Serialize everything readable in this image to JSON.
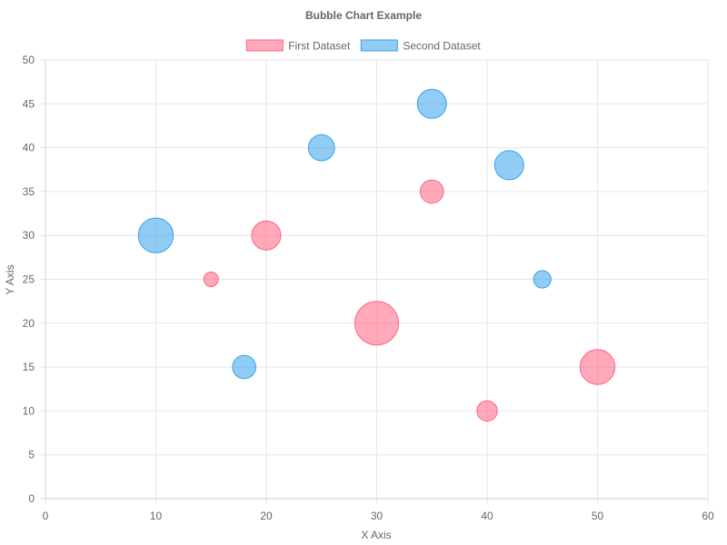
{
  "chart_data": {
    "type": "scatter",
    "subtype": "bubble",
    "title": "Bubble Chart Example",
    "xlabel": "X Axis",
    "ylabel": "Y Axis",
    "xlim": [
      0,
      60
    ],
    "ylim": [
      0,
      50
    ],
    "x_ticks": [
      "0",
      "10",
      "20",
      "30",
      "40",
      "50",
      "60"
    ],
    "y_ticks": [
      "0",
      "5",
      "10",
      "15",
      "20",
      "25",
      "30",
      "35",
      "40",
      "45",
      "50"
    ],
    "grid": true,
    "legend_position": "top",
    "series": [
      {
        "name": "First Dataset",
        "fill_color": "#ff6384",
        "border_color": "#ff6384",
        "points": [
          {
            "x": 15,
            "y": 25,
            "r": 5
          },
          {
            "x": 20,
            "y": 30,
            "r": 10
          },
          {
            "x": 30,
            "y": 20,
            "r": 15
          },
          {
            "x": 35,
            "y": 35,
            "r": 8
          },
          {
            "x": 40,
            "y": 10,
            "r": 7
          },
          {
            "x": 50,
            "y": 15,
            "r": 12
          }
        ]
      },
      {
        "name": "Second Dataset",
        "fill_color": "#36a2eb",
        "border_color": "#36a2eb",
        "points": [
          {
            "x": 10,
            "y": 30,
            "r": 12
          },
          {
            "x": 18,
            "y": 15,
            "r": 8
          },
          {
            "x": 25,
            "y": 40,
            "r": 9
          },
          {
            "x": 35,
            "y": 45,
            "r": 10
          },
          {
            "x": 42,
            "y": 38,
            "r": 10
          },
          {
            "x": 45,
            "y": 25,
            "r": 6
          }
        ]
      }
    ]
  }
}
